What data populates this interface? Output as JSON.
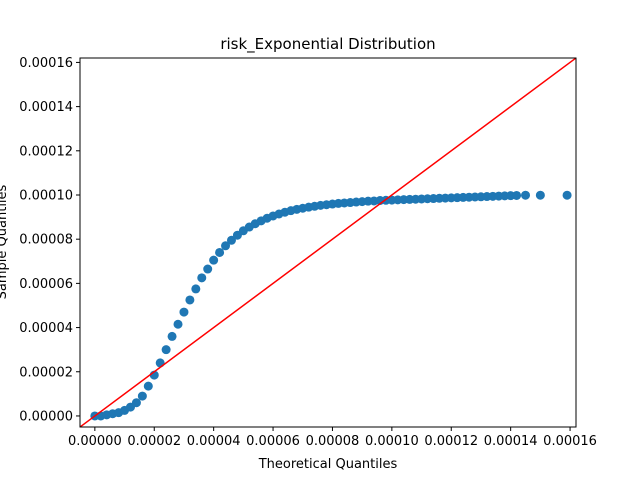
{
  "chart_data": {
    "type": "scatter",
    "title": "risk_Exponential Distribution",
    "xlabel": "Theoretical Quantiles",
    "ylabel": "Sample Quantiles",
    "xlim": [
      -5e-06,
      0.000162
    ],
    "ylim": [
      -5e-06,
      0.000162
    ],
    "x_ticks": [
      "0.00000",
      "0.00002",
      "0.00004",
      "0.00006",
      "0.00008",
      "0.00010",
      "0.00012",
      "0.00014",
      "0.00016"
    ],
    "x_tick_values": [
      0,
      2e-05,
      4e-05,
      6e-05,
      8e-05,
      0.0001,
      0.00012,
      0.00014,
      0.00016
    ],
    "y_ticks": [
      "0.00000",
      "0.00002",
      "0.00004",
      "0.00006",
      "0.00008",
      "0.00010",
      "0.00012",
      "0.00014",
      "0.00016"
    ],
    "y_tick_values": [
      0,
      2e-05,
      4e-05,
      6e-05,
      8e-05,
      0.0001,
      0.00012,
      0.00014,
      0.00016
    ],
    "grid": false,
    "marker_color": "#1f77b4",
    "reference_line": {
      "type": "45-degree",
      "color": "#ff0000"
    },
    "points": {
      "x": [
        0.0,
        2e-06,
        4e-06,
        6e-06,
        8e-06,
        1e-05,
        1.2e-05,
        1.4e-05,
        1.6e-05,
        1.8e-05,
        2e-05,
        2.2e-05,
        2.4e-05,
        2.6e-05,
        2.8e-05,
        3e-05,
        3.2e-05,
        3.4e-05,
        3.6e-05,
        3.8e-05,
        4e-05,
        4.2e-05,
        4.4e-05,
        4.6e-05,
        4.8e-05,
        5e-05,
        5.2e-05,
        5.4e-05,
        5.6e-05,
        5.8e-05,
        6e-05,
        6.2e-05,
        6.4e-05,
        6.6e-05,
        6.8e-05,
        7e-05,
        7.2e-05,
        7.4e-05,
        7.6e-05,
        7.8e-05,
        8e-05,
        8.2e-05,
        8.4e-05,
        8.6e-05,
        8.8e-05,
        9e-05,
        9.2e-05,
        9.4e-05,
        9.6e-05,
        9.8e-05,
        0.0001,
        0.000102,
        0.000104,
        0.000106,
        0.000108,
        0.00011,
        0.000112,
        0.000114,
        0.000116,
        0.000118,
        0.00012,
        0.000122,
        0.000124,
        0.000126,
        0.000128,
        0.00013,
        0.000132,
        0.000134,
        0.000136,
        0.000138,
        0.00014,
        0.000142,
        0.000145,
        0.00015,
        0.000159
      ],
      "y": [
        0.0,
        0.0,
        5e-07,
        1e-06,
        1.5e-06,
        2.5e-06,
        4e-06,
        6e-06,
        9e-06,
        1.35e-05,
        1.85e-05,
        2.4e-05,
        3e-05,
        3.6e-05,
        4.15e-05,
        4.7e-05,
        5.25e-05,
        5.75e-05,
        6.25e-05,
        6.65e-05,
        7.05e-05,
        7.4e-05,
        7.7e-05,
        7.95e-05,
        8.18e-05,
        8.38e-05,
        8.55e-05,
        8.7e-05,
        8.83e-05,
        8.95e-05,
        9.05e-05,
        9.14e-05,
        9.22e-05,
        9.29e-05,
        9.35e-05,
        9.4e-05,
        9.45e-05,
        9.49e-05,
        9.53e-05,
        9.56e-05,
        9.59e-05,
        9.62e-05,
        9.64e-05,
        9.66e-05,
        9.68e-05,
        9.7e-05,
        9.72e-05,
        9.73e-05,
        9.75e-05,
        9.76e-05,
        9.77e-05,
        9.78e-05,
        9.79e-05,
        9.8e-05,
        9.81e-05,
        9.82e-05,
        9.83e-05,
        9.84e-05,
        9.85e-05,
        9.86e-05,
        9.87e-05,
        9.88e-05,
        9.89e-05,
        9.9e-05,
        9.91e-05,
        9.92e-05,
        9.93e-05,
        9.94e-05,
        9.95e-05,
        9.96e-05,
        9.97e-05,
        9.98e-05,
        9.99e-05,
        9.99e-05,
        9.99e-05
      ]
    }
  }
}
